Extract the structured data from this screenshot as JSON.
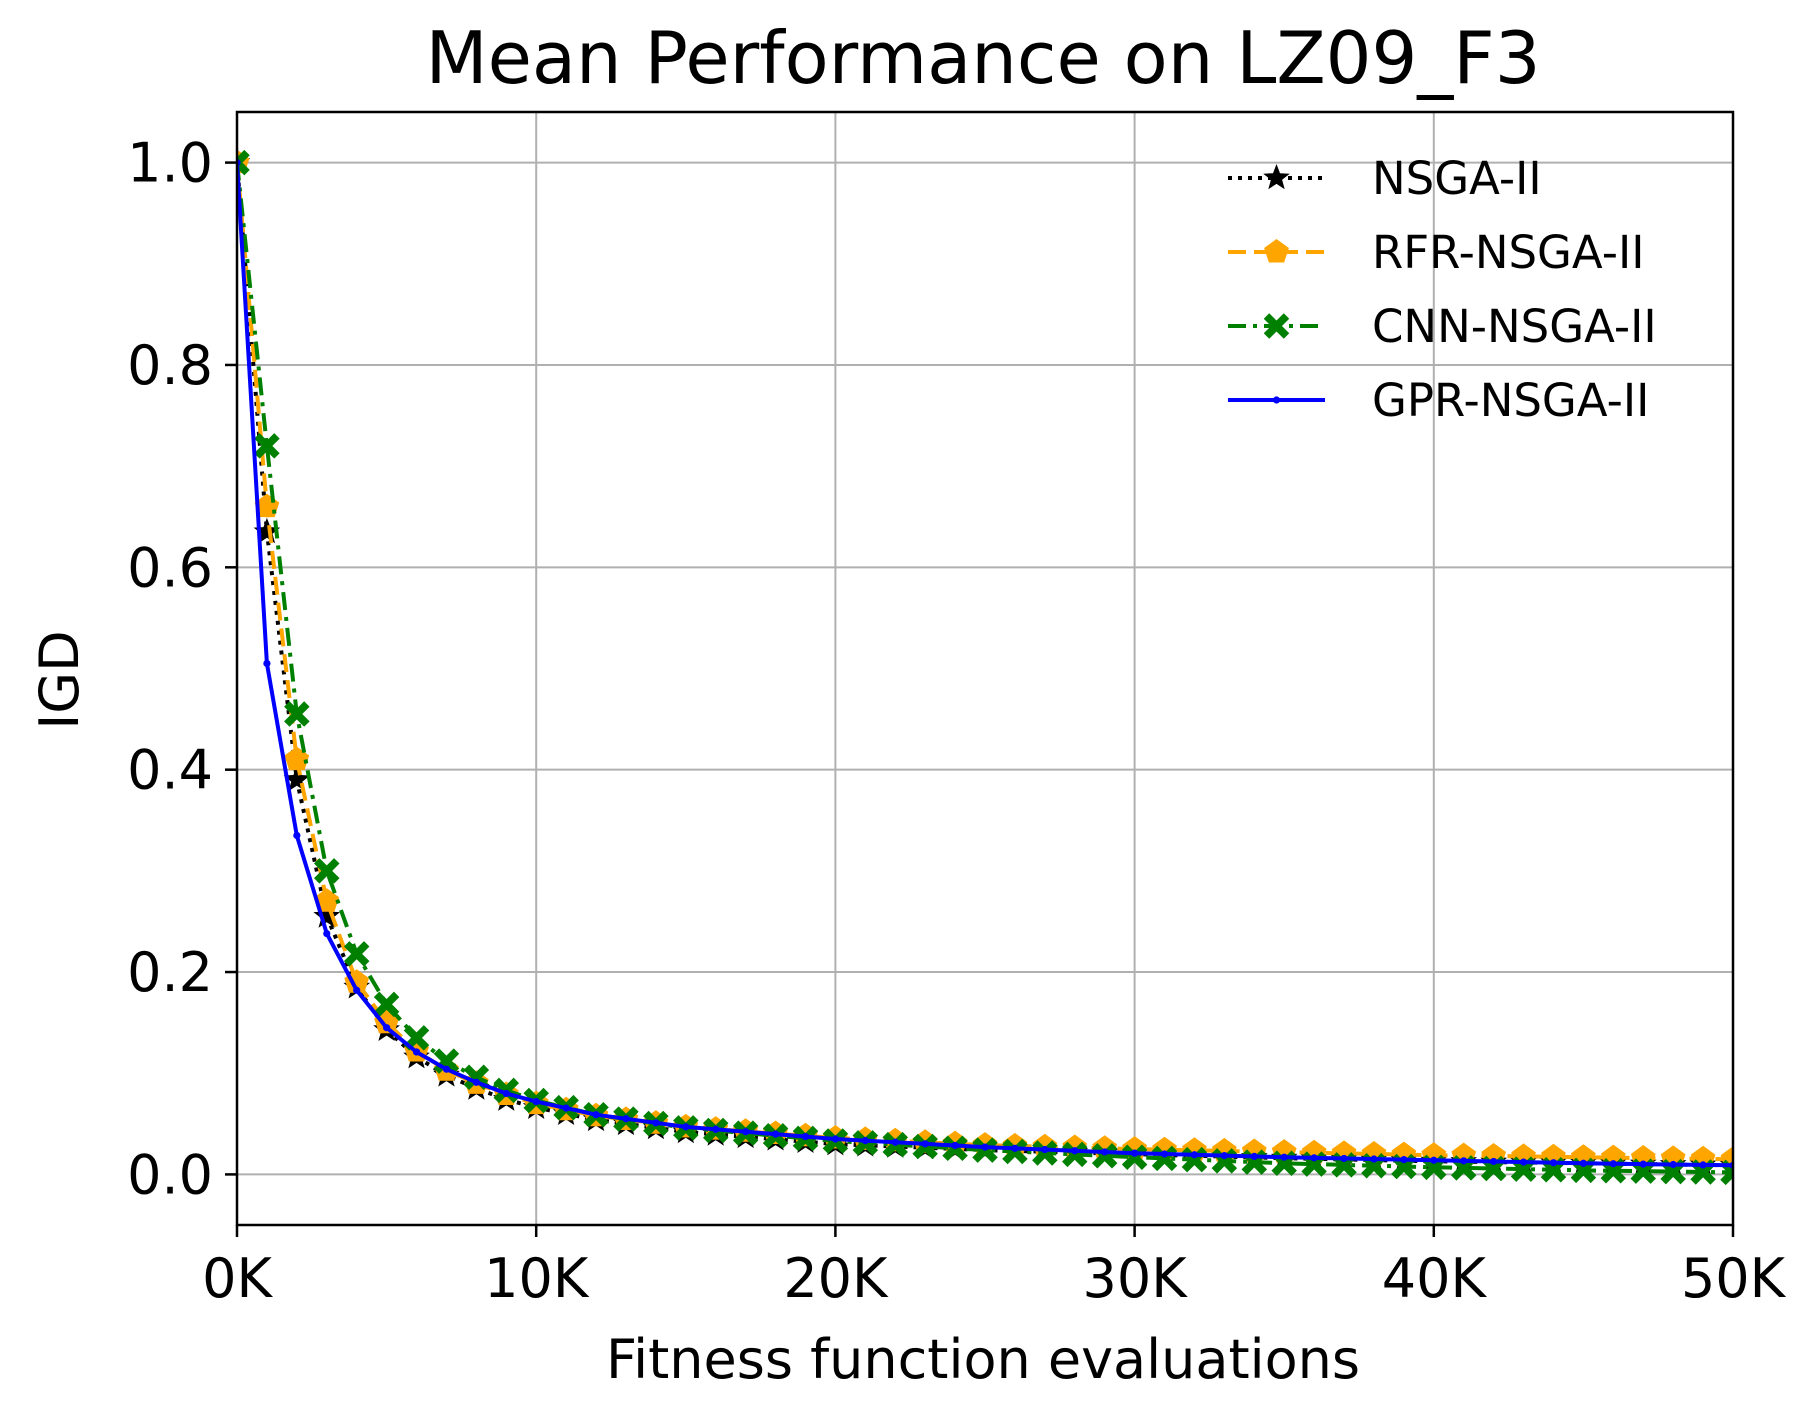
{
  "chart_data": {
    "type": "line",
    "title": "Mean Performance on LZ09_F3",
    "xlabel": "Fitness function evaluations",
    "ylabel": "IGD",
    "xlim": [
      0,
      50000
    ],
    "ylim": [
      -0.05,
      1.05
    ],
    "xticks": [
      0,
      10000,
      20000,
      30000,
      40000,
      50000
    ],
    "xtick_labels": [
      "0K",
      "10K",
      "20K",
      "30K",
      "40K",
      "50K"
    ],
    "yticks": [
      0.0,
      0.2,
      0.4,
      0.6,
      0.8,
      1.0
    ],
    "ytick_labels": [
      "0.0",
      "0.2",
      "0.4",
      "0.6",
      "0.8",
      "1.0"
    ],
    "grid": true,
    "legend_position": "top-right",
    "series": [
      {
        "name": "NSGA-II",
        "color": "#000000",
        "linestyle": "dotted",
        "marker": "star",
        "x": [
          0,
          1000,
          2000,
          3000,
          4000,
          5000,
          6000,
          7000,
          8000,
          9000,
          10000,
          12000,
          15000,
          20000,
          25000,
          30000,
          35000,
          40000,
          45000,
          50000
        ],
        "y": [
          1.0,
          0.635,
          0.39,
          0.255,
          0.185,
          0.143,
          0.116,
          0.098,
          0.085,
          0.074,
          0.066,
          0.054,
          0.042,
          0.03,
          0.024,
          0.02,
          0.016,
          0.013,
          0.011,
          0.009
        ]
      },
      {
        "name": "RFR-NSGA-II",
        "color": "#FFA500",
        "linestyle": "dashed",
        "marker": "pentagon",
        "x": [
          0,
          1000,
          2000,
          3000,
          4000,
          5000,
          6000,
          7000,
          8000,
          9000,
          10000,
          12000,
          15000,
          20000,
          25000,
          30000,
          35000,
          40000,
          45000,
          50000
        ],
        "y": [
          1.0,
          0.66,
          0.41,
          0.27,
          0.19,
          0.15,
          0.122,
          0.103,
          0.09,
          0.079,
          0.07,
          0.058,
          0.047,
          0.036,
          0.029,
          0.025,
          0.022,
          0.019,
          0.017,
          0.015
        ]
      },
      {
        "name": "CNN-NSGA-II",
        "color": "#008000",
        "linestyle": "dashdot",
        "marker": "x",
        "x": [
          0,
          1000,
          2000,
          3000,
          4000,
          5000,
          6000,
          7000,
          8000,
          9000,
          10000,
          12000,
          15000,
          20000,
          25000,
          30000,
          35000,
          40000,
          45000,
          50000
        ],
        "y": [
          1.0,
          0.72,
          0.455,
          0.3,
          0.218,
          0.168,
          0.135,
          0.112,
          0.096,
          0.083,
          0.073,
          0.059,
          0.046,
          0.033,
          0.024,
          0.017,
          0.011,
          0.007,
          0.004,
          0.002
        ]
      },
      {
        "name": "GPR-NSGA-II",
        "color": "#0000FF",
        "linestyle": "solid",
        "marker": "dot",
        "x": [
          0,
          1000,
          2000,
          3000,
          4000,
          5000,
          6000,
          7000,
          8000,
          9000,
          10000,
          12000,
          15000,
          20000,
          25000,
          30000,
          35000,
          40000,
          45000,
          50000
        ],
        "y": [
          1.0,
          0.505,
          0.335,
          0.238,
          0.182,
          0.145,
          0.121,
          0.104,
          0.091,
          0.08,
          0.072,
          0.059,
          0.047,
          0.035,
          0.027,
          0.021,
          0.017,
          0.014,
          0.011,
          0.009
        ]
      }
    ]
  }
}
